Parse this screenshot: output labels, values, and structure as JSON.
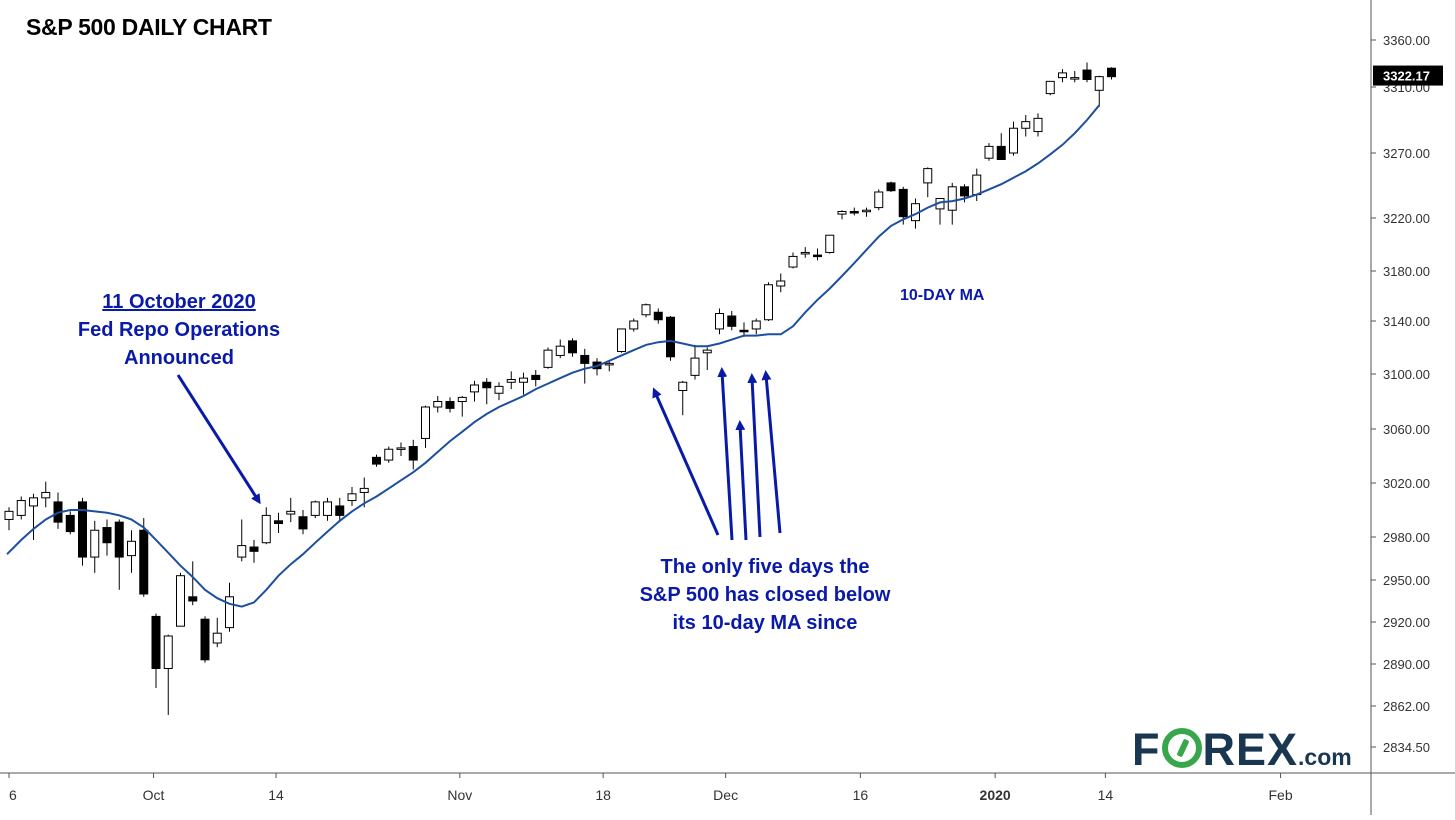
{
  "title": "S&P 500 DAILY CHART",
  "annotations": {
    "left_date": "11 October 2020",
    "left_line1": "Fed Repo Operations",
    "left_line2": "Announced",
    "bottom_line1": "The only five days the",
    "bottom_line2": "S&P 500 has closed below",
    "bottom_line3": "its 10-day MA since"
  },
  "ma_label": "10-DAY MA",
  "logo": {
    "main_before": "F",
    "main_after": "REX",
    "suffix": ".com"
  },
  "colors": {
    "ma_line": "#1c4fa0",
    "annotation_text": "#0a1aa8",
    "arrow": "#0a1aa8",
    "candle_up": "#ffffff",
    "candle_down": "#000000",
    "last_price_badge": "#000000",
    "logo_text": "#1a3752",
    "logo_accent": "#38a64a"
  },
  "chart_data": {
    "type": "candlestick",
    "title": "S&P 500 DAILY CHART",
    "y_ticks": [
      3360,
      3310,
      3270,
      3220,
      3180,
      3140,
      3100,
      3060,
      3020,
      2980,
      2950,
      2920,
      2890,
      2862,
      2834.5
    ],
    "y_tick_labels": [
      "3360.00",
      "3310.00",
      "3270.00",
      "3220.00",
      "3180.00",
      "3140.00",
      "3100.00",
      "3060.00",
      "3020.00",
      "2980.00",
      "2950.00",
      "2920.00",
      "2890.00",
      "2862.00",
      "2834.50"
    ],
    "x_tick_labels": [
      "6",
      "Oct",
      "14",
      "Nov",
      "18",
      "Dec",
      "16",
      "2020",
      "14",
      "Feb"
    ],
    "last_price": 3322.17,
    "last_price_label": "3322.17",
    "grid": false,
    "candles": [
      {
        "o": 2993,
        "h": 3002,
        "l": 2985,
        "c": 2999
      },
      {
        "o": 2996,
        "h": 3010,
        "l": 2993,
        "c": 3007
      },
      {
        "o": 3003,
        "h": 3012,
        "l": 2978,
        "c": 3009
      },
      {
        "o": 3009,
        "h": 3021,
        "l": 3002,
        "c": 3013
      },
      {
        "o": 3006,
        "h": 3013,
        "l": 2986,
        "c": 2991
      },
      {
        "o": 2996,
        "h": 2999,
        "l": 2982,
        "c": 2984
      },
      {
        "o": 3006,
        "h": 3009,
        "l": 2960,
        "c": 2966
      },
      {
        "o": 2966,
        "h": 2992,
        "l": 2955,
        "c": 2985
      },
      {
        "o": 2987,
        "h": 2993,
        "l": 2967,
        "c": 2976
      },
      {
        "o": 2991,
        "h": 2993,
        "l": 2943,
        "c": 2966
      },
      {
        "o": 2967,
        "h": 2985,
        "l": 2955,
        "c": 2977
      },
      {
        "o": 2985,
        "h": 2994,
        "l": 2938,
        "c": 2940
      },
      {
        "o": 2924,
        "h": 2926,
        "l": 2874,
        "c": 2887
      },
      {
        "o": 2887,
        "h": 2911,
        "l": 2856,
        "c": 2910
      },
      {
        "o": 2917,
        "h": 2955,
        "l": 2917,
        "c": 2953
      },
      {
        "o": 2938,
        "h": 2963,
        "l": 2932,
        "c": 2935
      },
      {
        "o": 2922,
        "h": 2924,
        "l": 2891,
        "c": 2893
      },
      {
        "o": 2905,
        "h": 2923,
        "l": 2902,
        "c": 2912
      },
      {
        "o": 2916,
        "h": 2948,
        "l": 2913,
        "c": 2938
      },
      {
        "o": 2966,
        "h": 2993,
        "l": 2963,
        "c": 2974
      },
      {
        "o": 2973,
        "h": 2978,
        "l": 2962,
        "c": 2970
      },
      {
        "o": 2976,
        "h": 3002,
        "l": 2975,
        "c": 2996
      },
      {
        "o": 2992,
        "h": 2998,
        "l": 2983,
        "c": 2990
      },
      {
        "o": 2997,
        "h": 3009,
        "l": 2991,
        "c": 2999
      },
      {
        "o": 2995,
        "h": 3000,
        "l": 2982,
        "c": 2986
      },
      {
        "o": 2996,
        "h": 3007,
        "l": 2994,
        "c": 3006
      },
      {
        "o": 2996,
        "h": 3009,
        "l": 2992,
        "c": 3006
      },
      {
        "o": 3003,
        "h": 3009,
        "l": 2991,
        "c": 2996
      },
      {
        "o": 3007,
        "h": 3017,
        "l": 3003,
        "c": 3012
      },
      {
        "o": 3013,
        "h": 3024,
        "l": 3002,
        "c": 3016
      },
      {
        "o": 3039,
        "h": 3041,
        "l": 3032,
        "c": 3034
      },
      {
        "o": 3037,
        "h": 3047,
        "l": 3035,
        "c": 3045
      },
      {
        "o": 3046,
        "h": 3050,
        "l": 3040,
        "c": 3046
      },
      {
        "o": 3047,
        "h": 3052,
        "l": 3030,
        "c": 3037
      },
      {
        "o": 3053,
        "h": 3077,
        "l": 3046,
        "c": 3076
      },
      {
        "o": 3076,
        "h": 3084,
        "l": 3072,
        "c": 3080
      },
      {
        "o": 3080,
        "h": 3083,
        "l": 3072,
        "c": 3075
      },
      {
        "o": 3080,
        "h": 3084,
        "l": 3069,
        "c": 3083
      },
      {
        "o": 3087,
        "h": 3095,
        "l": 3080,
        "c": 3092
      },
      {
        "o": 3094,
        "h": 3097,
        "l": 3078,
        "c": 3090
      },
      {
        "o": 3086,
        "h": 3094,
        "l": 3081,
        "c": 3091
      },
      {
        "o": 3094,
        "h": 3102,
        "l": 3089,
        "c": 3096
      },
      {
        "o": 3094,
        "h": 3101,
        "l": 3085,
        "c": 3097
      },
      {
        "o": 3099,
        "h": 3103,
        "l": 3091,
        "c": 3096
      },
      {
        "o": 3105,
        "h": 3120,
        "l": 3104,
        "c": 3118
      },
      {
        "o": 3114,
        "h": 3126,
        "l": 3112,
        "c": 3121
      },
      {
        "o": 3125,
        "h": 3127,
        "l": 3113,
        "c": 3116
      },
      {
        "o": 3114,
        "h": 3119,
        "l": 3093,
        "c": 3108
      },
      {
        "o": 3109,
        "h": 3112,
        "l": 3099,
        "c": 3104
      },
      {
        "o": 3107,
        "h": 3110,
        "l": 3102,
        "c": 3108
      },
      {
        "o": 3117,
        "h": 3134,
        "l": 3116,
        "c": 3134
      },
      {
        "o": 3134,
        "h": 3142,
        "l": 3132,
        "c": 3140
      },
      {
        "o": 3145,
        "h": 3154,
        "l": 3143,
        "c": 3153
      },
      {
        "o": 3147,
        "h": 3150,
        "l": 3138,
        "c": 3141
      },
      {
        "o": 3143,
        "h": 3144,
        "l": 3110,
        "c": 3113
      },
      {
        "o": 3088,
        "h": 3095,
        "l": 3070,
        "c": 3094
      },
      {
        "o": 3099,
        "h": 3122,
        "l": 3096,
        "c": 3112
      },
      {
        "o": 3116,
        "h": 3120,
        "l": 3103,
        "c": 3118
      },
      {
        "o": 3134,
        "h": 3150,
        "l": 3130,
        "c": 3146
      },
      {
        "o": 3144,
        "h": 3148,
        "l": 3133,
        "c": 3136
      },
      {
        "o": 3133,
        "h": 3139,
        "l": 3128,
        "c": 3132
      },
      {
        "o": 3134,
        "h": 3142,
        "l": 3130,
        "c": 3140
      },
      {
        "o": 3141,
        "h": 3171,
        "l": 3140,
        "c": 3169
      },
      {
        "o": 3168,
        "h": 3178,
        "l": 3163,
        "c": 3172
      },
      {
        "o": 3183,
        "h": 3194,
        "l": 3182,
        "c": 3191
      },
      {
        "o": 3193,
        "h": 3198,
        "l": 3190,
        "c": 3194
      },
      {
        "o": 3192,
        "h": 3197,
        "l": 3188,
        "c": 3191
      },
      {
        "o": 3194,
        "h": 3207,
        "l": 3193,
        "c": 3207
      },
      {
        "o": 3223,
        "h": 3226,
        "l": 3219,
        "c": 3225
      },
      {
        "o": 3225,
        "h": 3228,
        "l": 3222,
        "c": 3224
      },
      {
        "o": 3225,
        "h": 3228,
        "l": 3221,
        "c": 3226
      },
      {
        "o": 3228,
        "h": 3242,
        "l": 3226,
        "c": 3240
      },
      {
        "o": 3247,
        "h": 3248,
        "l": 3240,
        "c": 3241
      },
      {
        "o": 3242,
        "h": 3244,
        "l": 3215,
        "c": 3221
      },
      {
        "o": 3218,
        "h": 3235,
        "l": 3212,
        "c": 3231
      },
      {
        "o": 3247,
        "h": 3259,
        "l": 3236,
        "c": 3258
      },
      {
        "o": 3227,
        "h": 3235,
        "l": 3215,
        "c": 3235
      },
      {
        "o": 3226,
        "h": 3247,
        "l": 3215,
        "c": 3244
      },
      {
        "o": 3244,
        "h": 3246,
        "l": 3232,
        "c": 3237
      },
      {
        "o": 3238,
        "h": 3258,
        "l": 3233,
        "c": 3253
      },
      {
        "o": 3266,
        "h": 3276,
        "l": 3264,
        "c": 3274
      },
      {
        "o": 3274,
        "h": 3282,
        "l": 3268,
        "c": 3265
      },
      {
        "o": 3270,
        "h": 3289,
        "l": 3268,
        "c": 3285
      },
      {
        "o": 3285,
        "h": 3293,
        "l": 3280,
        "c": 3289
      },
      {
        "o": 3283,
        "h": 3294,
        "l": 3280,
        "c": 3291
      },
      {
        "o": 3306,
        "h": 3316,
        "l": 3305,
        "c": 3316
      },
      {
        "o": 3320,
        "h": 3329,
        "l": 3315,
        "c": 3325
      },
      {
        "o": 3320,
        "h": 3327,
        "l": 3315,
        "c": 3320
      },
      {
        "o": 3328,
        "h": 3336,
        "l": 3315,
        "c": 3318
      },
      {
        "o": 3308,
        "h": 3322,
        "l": 3298,
        "c": 3321
      },
      {
        "o": 3330,
        "h": 3331,
        "l": 3318,
        "c": 3321
      }
    ],
    "ma_10": [
      2968,
      2978,
      2986,
      2993,
      2998,
      3000,
      3000,
      2999,
      2998,
      2996,
      2993,
      2987,
      2978,
      2969,
      2960,
      2952,
      2943,
      2937,
      2933,
      2931,
      2934,
      2943,
      2953,
      2961,
      2968,
      2976,
      2984,
      2992,
      2999,
      3005,
      3010,
      3016,
      3022,
      3028,
      3035,
      3043,
      3051,
      3058,
      3065,
      3071,
      3076,
      3080,
      3084,
      3089,
      3093,
      3097,
      3101,
      3104,
      3106,
      3110,
      3114,
      3118,
      3122,
      3124,
      3125,
      3123,
      3121,
      3121,
      3123,
      3126,
      3129,
      3129,
      3130,
      3130,
      3136,
      3147,
      3157,
      3166,
      3176,
      3186,
      3196,
      3206,
      3214,
      3219,
      3223,
      3228,
      3232,
      3233,
      3235,
      3238,
      3242,
      3246,
      3251,
      3256,
      3262,
      3269,
      3275,
      3282,
      3290,
      3299
    ]
  }
}
